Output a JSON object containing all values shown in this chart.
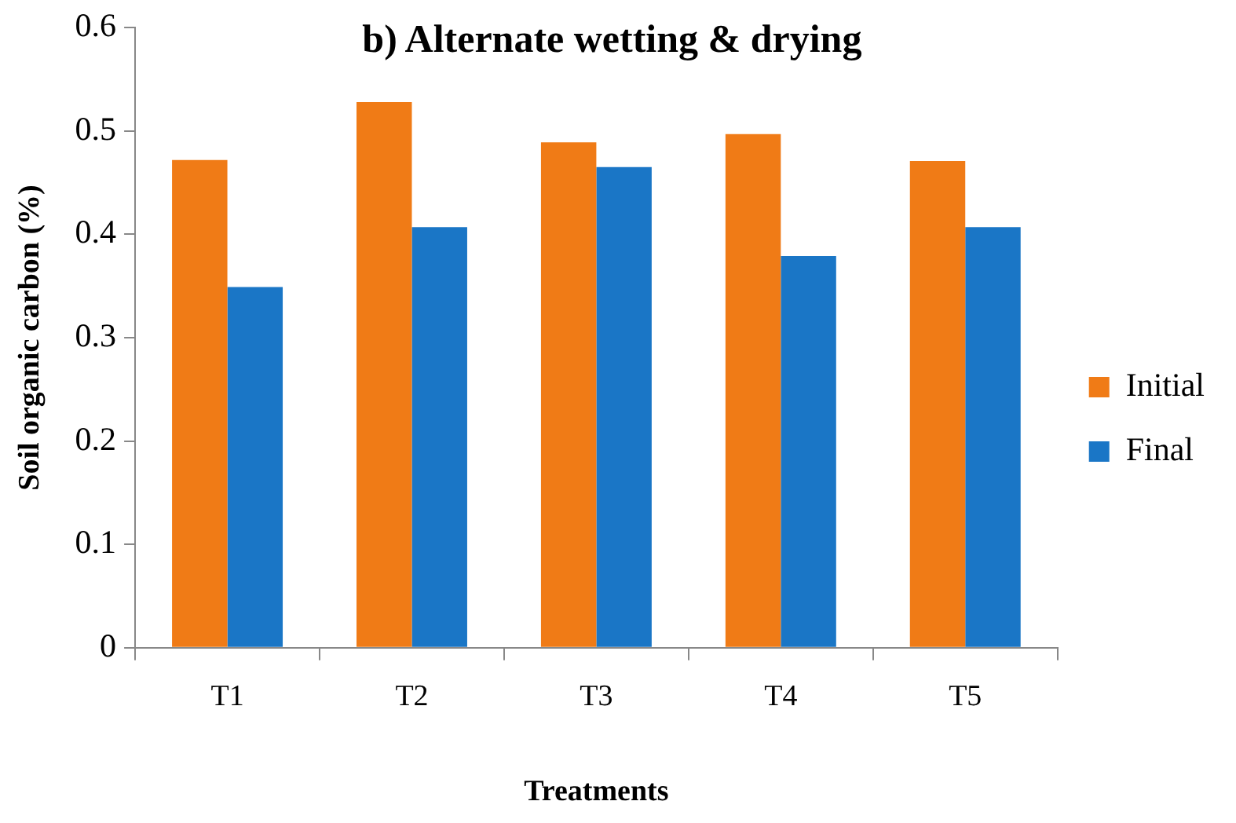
{
  "chart_data": {
    "type": "bar",
    "title": "b) Alternate wetting & drying",
    "xlabel": "Treatments",
    "ylabel": "Soil organic carbon (%)",
    "categories": [
      "T1",
      "T2",
      "T3",
      "T4",
      "T5"
    ],
    "series": [
      {
        "name": "Initial",
        "color": "#f07b16",
        "values": [
          0.472,
          0.528,
          0.489,
          0.497,
          0.471
        ]
      },
      {
        "name": "Final",
        "color": "#1a76c6",
        "values": [
          0.349,
          0.407,
          0.465,
          0.379,
          0.407
        ]
      }
    ],
    "ylim": [
      0,
      0.6
    ],
    "yticks": [
      0,
      0.1,
      0.2,
      0.3,
      0.4,
      0.5,
      0.6
    ],
    "grid": false,
    "legend": "right"
  }
}
